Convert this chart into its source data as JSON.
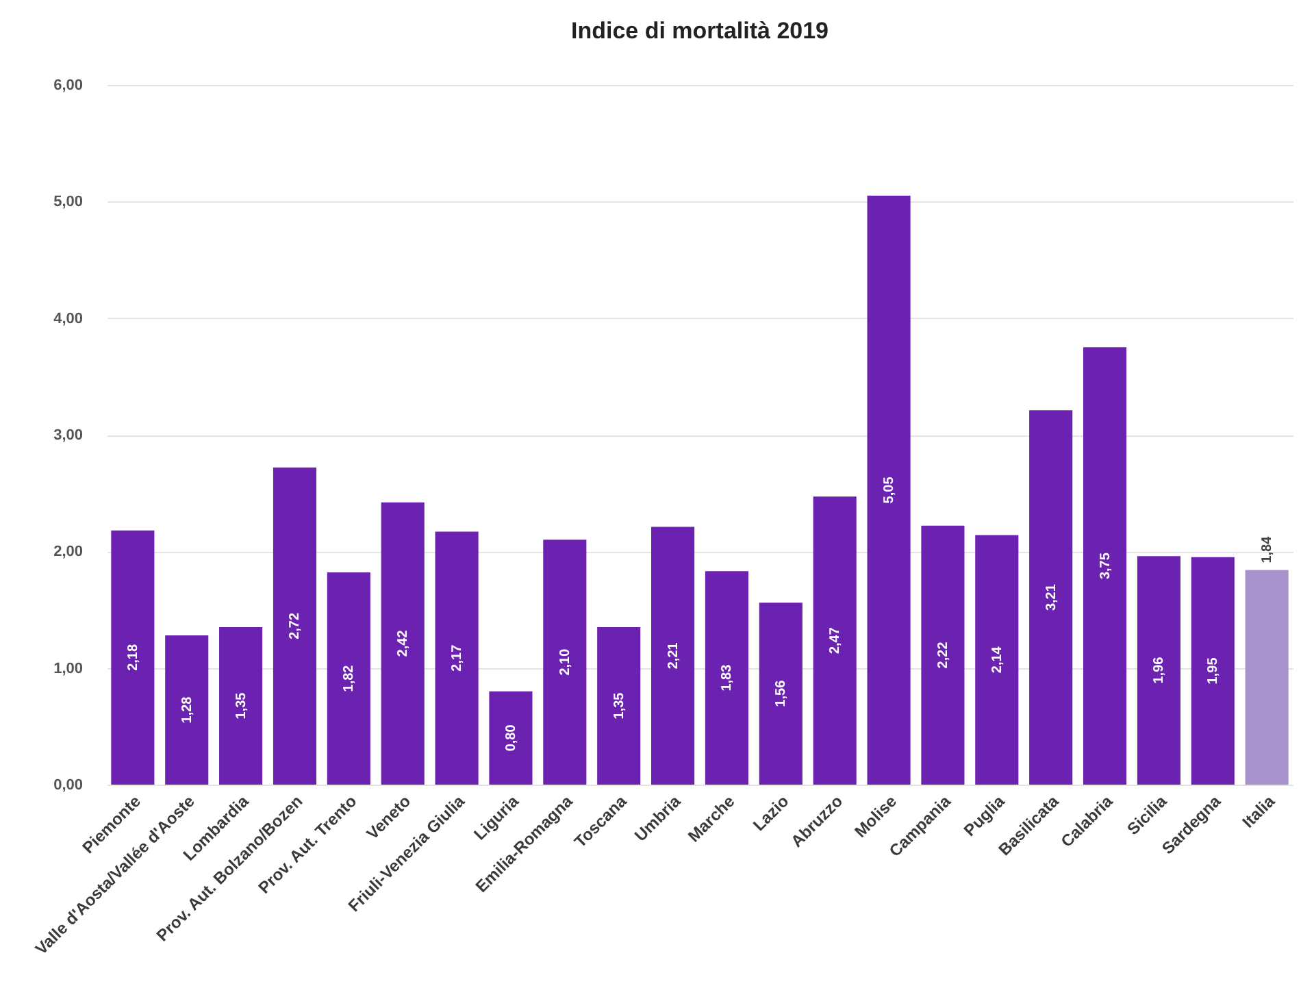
{
  "chart_data": {
    "type": "bar",
    "title": "Indice di mortalità 2019",
    "categories": [
      "Piemonte",
      "Valle d'Aosta/Vallée d'Aoste",
      "Lombardia",
      "Prov. Aut. Bolzano/Bozen",
      "Prov. Aut. Trento",
      "Veneto",
      "Friuli-Venezia Giulia",
      "Liguria",
      "Emilia-Romagna",
      "Toscana",
      "Umbria",
      "Marche",
      "Lazio",
      "Abruzzo",
      "Molise",
      "Campania",
      "Puglia",
      "Basilicata",
      "Calabria",
      "Sicilia",
      "Sardegna",
      "Italia"
    ],
    "values": [
      2.18,
      1.28,
      1.35,
      2.72,
      1.82,
      2.42,
      2.17,
      0.8,
      2.1,
      1.35,
      2.21,
      1.83,
      1.56,
      2.47,
      5.05,
      2.22,
      2.14,
      3.21,
      3.75,
      1.96,
      1.95,
      1.84
    ],
    "value_labels": [
      "2,18",
      "1,28",
      "1,35",
      "2,72",
      "1,82",
      "2,42",
      "2,17",
      "0,80",
      "2,10",
      "1,35",
      "2,21",
      "1,83",
      "1,56",
      "2,47",
      "5,05",
      "2,22",
      "2,14",
      "3,21",
      "3,75",
      "1,96",
      "1,95",
      "1,84"
    ],
    "colors": [
      "#6c22b0",
      "#6c22b0",
      "#6c22b0",
      "#6c22b0",
      "#6c22b0",
      "#6c22b0",
      "#6c22b0",
      "#6c22b0",
      "#6c22b0",
      "#6c22b0",
      "#6c22b0",
      "#6c22b0",
      "#6c22b0",
      "#6c22b0",
      "#6c22b0",
      "#6c22b0",
      "#6c22b0",
      "#6c22b0",
      "#6c22b0",
      "#6c22b0",
      "#6c22b0",
      "#a892cc"
    ],
    "ylim": [
      0,
      6
    ],
    "yticks": [
      {
        "value": 0,
        "label": "0,00"
      },
      {
        "value": 1,
        "label": "1,00"
      },
      {
        "value": 2,
        "label": "2,00"
      },
      {
        "value": 3,
        "label": "3,00"
      },
      {
        "value": 4,
        "label": "4,00"
      },
      {
        "value": 5,
        "label": "5,00"
      },
      {
        "value": 6,
        "label": "6,00"
      }
    ],
    "grid": "y"
  }
}
